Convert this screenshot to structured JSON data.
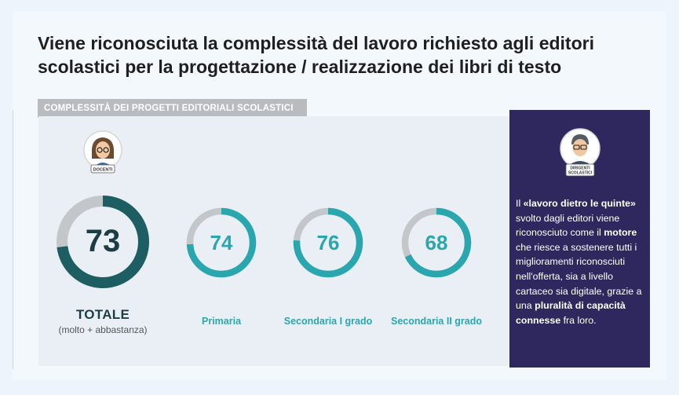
{
  "title": "Viene riconosciuta la complessità del lavoro richiesto agli editori scolastici per la progettazione / realizzazione dei libri di testo",
  "section_label": "COMPLESSITÀ DEI PROGETTI EDITORIALI SCOLASTICI",
  "avatars": {
    "teachers": "DOCENTI",
    "principals_line1": "DIRIGENTI",
    "principals_line2": "SCOLASTICI"
  },
  "total_label": "TOTALE",
  "total_sub": "(molto + abbastanza)",
  "colors": {
    "total_ring": "#1d5e63",
    "ring": "#2aa7ae",
    "track": "#c4c7ca",
    "side_bg": "#2f285e",
    "label": "#2aa7ae"
  },
  "sidebar": {
    "t1": "Il ",
    "b1": "«lavoro dietro le quinte»",
    "t2": " svolto dagli editori viene riconosciuto come il ",
    "b2": "motore",
    "t3": " che riesce a sostenere tutti i miglioramenti riconosciuti nell'offerta, sia a livello cartaceo sia digitale, grazie a una ",
    "b3": "pluralità di capacità connesse",
    "t4": " fra loro."
  },
  "chart_data": {
    "type": "donut",
    "unit": "%",
    "categories": [
      "TOTALE",
      "Primaria",
      "Secondaria I grado",
      "Secondaria II grado"
    ],
    "values": [
      73,
      74,
      76,
      68
    ],
    "value_labels": [
      "73",
      "74",
      "76",
      "68"
    ]
  }
}
